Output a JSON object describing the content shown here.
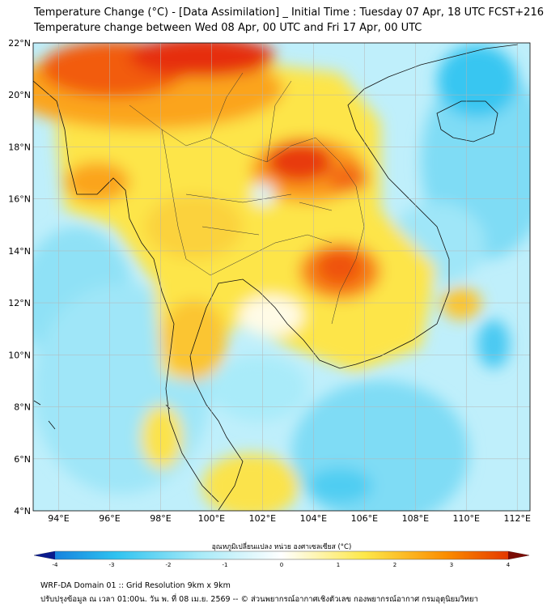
{
  "title": {
    "line1": "Temperature Change (°C) - [Data Assimilation] _ Initial Time : Tuesday 07 Apr, 18 UTC FCST+216",
    "line2": "Temperature change between Wed 08 Apr, 00 UTC and Fri 17 Apr, 00 UTC"
  },
  "map": {
    "lat_labels": [
      "22°N",
      "20°N",
      "18°N",
      "16°N",
      "14°N",
      "12°N",
      "10°N",
      "8°N",
      "6°N",
      "4°N"
    ],
    "lon_labels": [
      "94°E",
      "96°E",
      "98°E",
      "100°E",
      "102°E",
      "104°E",
      "106°E",
      "108°E",
      "110°E",
      "112°E"
    ],
    "lat_range": [
      4,
      22
    ],
    "lon_range": [
      93,
      112.5
    ],
    "grid": true,
    "palette": {
      "strong_warm": "#dd1c00",
      "warm": "#fb8c00",
      "mild_warm": "#fde84a",
      "neutral": "#ffffff",
      "mild_cool": "#a6eaf8",
      "cool": "#2fc3f0",
      "strong_cool": "#0f6dd8"
    }
  },
  "colorbar": {
    "label": "อุณหภูมิเปลี่ยนแปลง หน่วย องศาเซลเซียส (°C)",
    "ticks": [
      "-4",
      "-3",
      "-2",
      "-1",
      "0",
      "1",
      "2",
      "3",
      "4"
    ]
  },
  "footer": {
    "line1": "WRF-DA Domain 01 :: Grid Resolution 9km x 9km",
    "line2": "ปรับปรุงข้อมูล ณ เวลา 01:00น. วัน พ. ที่ 08 เม.ย. 2569 -- © ส่วนพยากรณ์อากาศเชิงตัวเลข กองพยากรณ์อากาศ กรมอุตุนิยมวิทยา"
  }
}
